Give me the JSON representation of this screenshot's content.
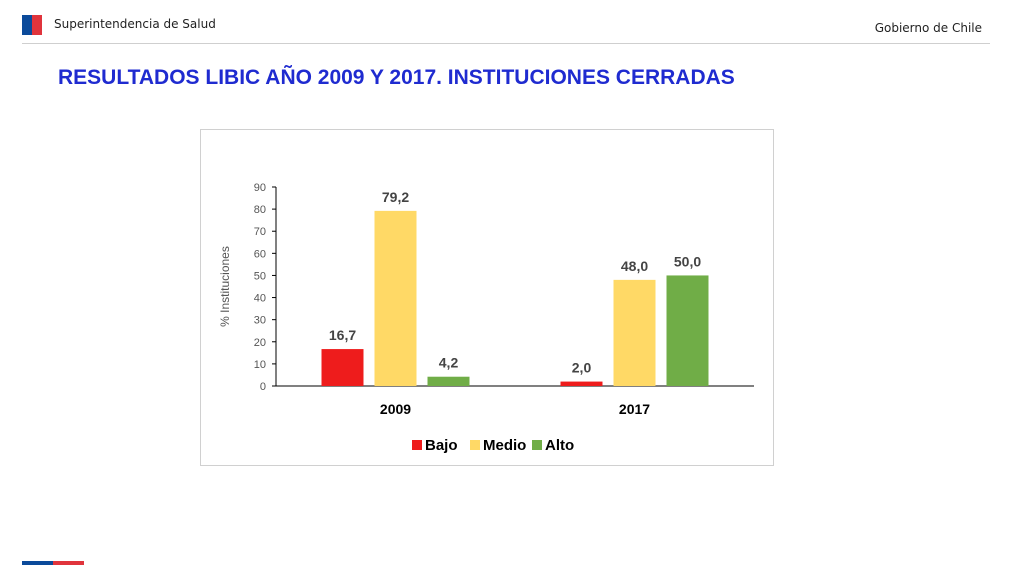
{
  "header": {
    "org_name": "Superintendencia de Salud",
    "gov_name": "Gobierno de Chile"
  },
  "page": {
    "title": "RESULTADOS LIBIC AÑO 2009 Y 2017. INSTITUCIONES CERRADAS"
  },
  "colors": {
    "title": "#1f2bd0",
    "flag_blue": "#0b4a9a",
    "flag_red": "#e0343c"
  },
  "chart_data": {
    "type": "bar",
    "categories": [
      "2009",
      "2017"
    ],
    "series": [
      {
        "name": "Bajo",
        "values": [
          16.7,
          2.0
        ],
        "labels": [
          "16,7",
          "2,0"
        ],
        "color": "#ee1c1c"
      },
      {
        "name": "Medio",
        "values": [
          79.2,
          48.0
        ],
        "labels": [
          "79,2",
          "48,0"
        ],
        "color": "#ffd966"
      },
      {
        "name": "Alto",
        "values": [
          4.2,
          50.0
        ],
        "labels": [
          "4,2",
          "50,0"
        ],
        "color": "#70ad47"
      }
    ],
    "title": "",
    "xlabel": "",
    "ylabel": "% Instituciones",
    "ylim": [
      0,
      90
    ],
    "yticks": [
      0,
      10,
      20,
      30,
      40,
      50,
      60,
      70,
      80,
      90
    ],
    "grid": false,
    "legend_position": "bottom"
  }
}
